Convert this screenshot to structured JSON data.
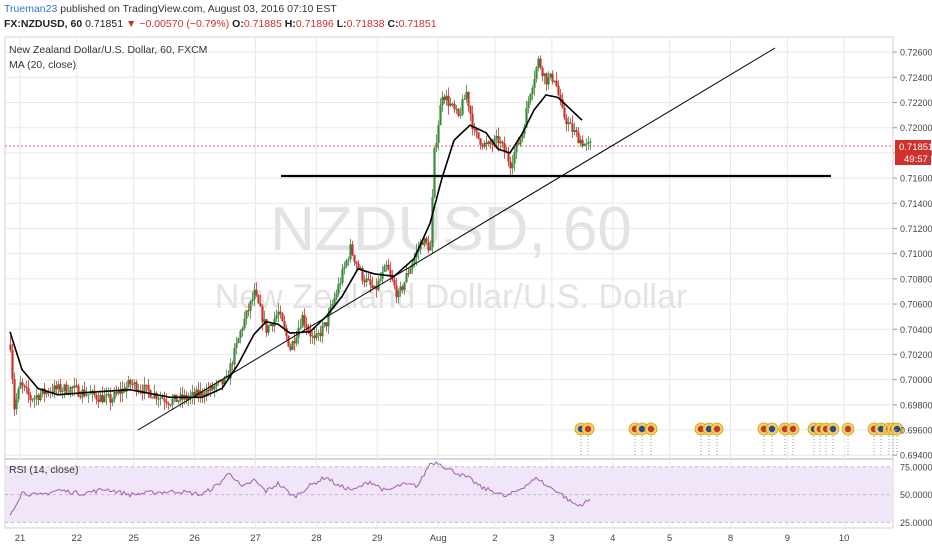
{
  "header": {
    "user": "Trueman23",
    "published_text": "published on TradingView.com, August 03, 2016 07:10 EST",
    "symbol": "FX:NZDUSD, 60",
    "last": "0.71851",
    "change_arrow": "▼",
    "change": "−0.00570 (−0.79%)",
    "open_label": "O:",
    "open": "0.71885",
    "high_label": "H:",
    "high": "0.71896",
    "low_label": "L:",
    "low": "0.71838",
    "close_label": "C:",
    "close": "0.71851"
  },
  "legend": {
    "title": "New Zealand Dollar/U.S. Dollar, 60, FXCM",
    "ma": "MA (20, close)",
    "rsi": "RSI (14, close)"
  },
  "watermark": {
    "symbol": "NZDUSD, 60",
    "name": "New Zealand Dollar/U.S. Dollar"
  },
  "price_badge": {
    "price": "0.71851",
    "countdown": "49:57"
  },
  "colors": {
    "up": "#3d8a3d",
    "down": "#c9312c",
    "ma": "#000000",
    "rsi": "#a35cb5",
    "rsi_band": "#f0e6f7",
    "grid": "#e8e8e8",
    "badge": "#d0312d"
  },
  "chart_data": [
    {
      "type": "candlestick",
      "title": "New Zealand Dollar/U.S. Dollar, 60, FXCM",
      "x_ticks": [
        "21",
        "22",
        "25",
        "26",
        "27",
        "28",
        "29",
        "Aug",
        "2",
        "3",
        "4",
        "5",
        "8",
        "9",
        "10"
      ],
      "y_ticks": [
        "0.72600",
        "0.72400",
        "0.72200",
        "0.72000",
        "0.71800",
        "0.71600",
        "0.71400",
        "0.71200",
        "0.71000",
        "0.70800",
        "0.70600",
        "0.70400",
        "0.70200",
        "0.70000",
        "0.69800",
        "0.69600",
        "0.69400"
      ],
      "ylim": [
        0.6937,
        0.7272
      ],
      "anchors": [
        [
          0,
          0.7028
        ],
        [
          2,
          0.6978
        ],
        [
          5,
          0.6996
        ],
        [
          10,
          0.6985
        ],
        [
          20,
          0.6992
        ],
        [
          30,
          0.6993
        ],
        [
          40,
          0.6988
        ],
        [
          50,
          0.6984
        ],
        [
          60,
          0.6997
        ],
        [
          70,
          0.699
        ],
        [
          80,
          0.6983
        ],
        [
          90,
          0.6986
        ],
        [
          100,
          0.6992
        ],
        [
          108,
          0.6999
        ],
        [
          116,
          0.7043
        ],
        [
          122,
          0.7068
        ],
        [
          128,
          0.704
        ],
        [
          134,
          0.7053
        ],
        [
          140,
          0.7025
        ],
        [
          146,
          0.705
        ],
        [
          152,
          0.703
        ],
        [
          158,
          0.7045
        ],
        [
          164,
          0.7074
        ],
        [
          170,
          0.7104
        ],
        [
          176,
          0.7082
        ],
        [
          182,
          0.707
        ],
        [
          188,
          0.7089
        ],
        [
          194,
          0.7066
        ],
        [
          200,
          0.709
        ],
        [
          206,
          0.7111
        ],
        [
          210,
          0.7104
        ],
        [
          212,
          0.718
        ],
        [
          216,
          0.7228
        ],
        [
          220,
          0.7218
        ],
        [
          224,
          0.7208
        ],
        [
          228,
          0.7228
        ],
        [
          232,
          0.7195
        ],
        [
          238,
          0.7185
        ],
        [
          244,
          0.719
        ],
        [
          250,
          0.7172
        ],
        [
          256,
          0.7196
        ],
        [
          260,
          0.723
        ],
        [
          264,
          0.7253
        ],
        [
          268,
          0.7238
        ],
        [
          272,
          0.724
        ],
        [
          276,
          0.7212
        ],
        [
          280,
          0.72
        ],
        [
          284,
          0.7192
        ],
        [
          288,
          0.7185
        ],
        [
          290,
          0.7186
        ]
      ],
      "ma_anchors": [
        [
          0,
          0.7038
        ],
        [
          6,
          0.7008
        ],
        [
          14,
          0.6993
        ],
        [
          24,
          0.6988
        ],
        [
          40,
          0.699
        ],
        [
          60,
          0.6992
        ],
        [
          80,
          0.6986
        ],
        [
          96,
          0.6986
        ],
        [
          106,
          0.6993
        ],
        [
          114,
          0.7012
        ],
        [
          122,
          0.7036
        ],
        [
          128,
          0.7046
        ],
        [
          134,
          0.7044
        ],
        [
          140,
          0.7037
        ],
        [
          150,
          0.7038
        ],
        [
          158,
          0.705
        ],
        [
          166,
          0.7066
        ],
        [
          174,
          0.7088
        ],
        [
          182,
          0.7084
        ],
        [
          192,
          0.7082
        ],
        [
          202,
          0.7096
        ],
        [
          210,
          0.7124
        ],
        [
          216,
          0.716
        ],
        [
          222,
          0.719
        ],
        [
          230,
          0.7202
        ],
        [
          238,
          0.7196
        ],
        [
          244,
          0.7183
        ],
        [
          250,
          0.718
        ],
        [
          256,
          0.7195
        ],
        [
          262,
          0.7214
        ],
        [
          268,
          0.7226
        ],
        [
          274,
          0.7224
        ],
        [
          280,
          0.7215
        ],
        [
          286,
          0.7206
        ]
      ],
      "rsi_anchors": [
        [
          0,
          32
        ],
        [
          6,
          52
        ],
        [
          14,
          49
        ],
        [
          24,
          54
        ],
        [
          36,
          51
        ],
        [
          48,
          55
        ],
        [
          60,
          50
        ],
        [
          72,
          52
        ],
        [
          84,
          53
        ],
        [
          96,
          50
        ],
        [
          104,
          59
        ],
        [
          110,
          70
        ],
        [
          116,
          56
        ],
        [
          122,
          63
        ],
        [
          128,
          53
        ],
        [
          134,
          60
        ],
        [
          142,
          48
        ],
        [
          150,
          58
        ],
        [
          158,
          66
        ],
        [
          164,
          58
        ],
        [
          172,
          54
        ],
        [
          180,
          62
        ],
        [
          188,
          53
        ],
        [
          196,
          59
        ],
        [
          204,
          58
        ],
        [
          210,
          78
        ],
        [
          214,
          79
        ],
        [
          218,
          74
        ],
        [
          224,
          69
        ],
        [
          230,
          64
        ],
        [
          236,
          56
        ],
        [
          242,
          53
        ],
        [
          248,
          48
        ],
        [
          254,
          54
        ],
        [
          260,
          61
        ],
        [
          264,
          65
        ],
        [
          268,
          58
        ],
        [
          272,
          55
        ],
        [
          276,
          50
        ],
        [
          280,
          44
        ],
        [
          284,
          40
        ],
        [
          290,
          45
        ]
      ],
      "rsi_ylim": [
        20,
        82
      ],
      "rsi_ticks": [
        "75.0000",
        "50.0000",
        "25.0000"
      ],
      "event_markers": 24
    }
  ]
}
